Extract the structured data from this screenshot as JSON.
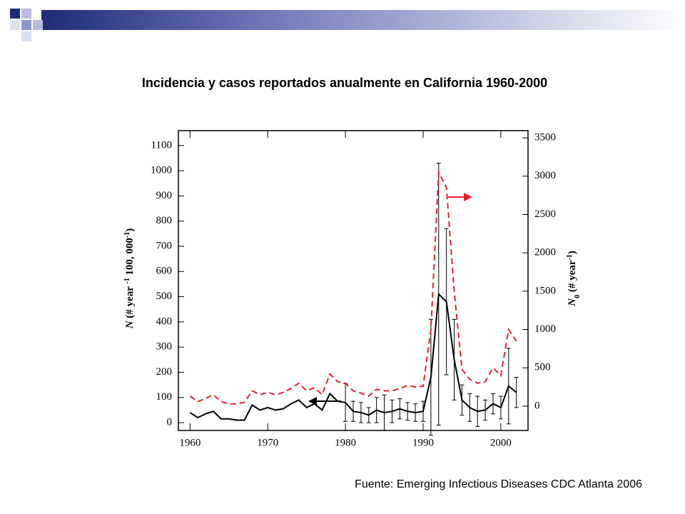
{
  "chart_data": {
    "type": "line",
    "title": "Incidencia y casos reportados anualmente en California 1960-2000",
    "source": "Fuente: Emerging Infectious Diseases CDC Atlanta 2006",
    "ylabel": [
      "N",
      " (# year ",
      "-1",
      " 100, 000",
      "-1",
      ")"
    ],
    "y2label": [
      "N",
      "0",
      " (# year",
      "-1",
      ")"
    ],
    "x": [
      1960,
      1961,
      1962,
      1963,
      1964,
      1965,
      1966,
      1967,
      1968,
      1969,
      1970,
      1971,
      1972,
      1973,
      1974,
      1975,
      1976,
      1977,
      1978,
      1979,
      1980,
      1981,
      1982,
      1983,
      1984,
      1985,
      1986,
      1987,
      1988,
      1989,
      1990,
      1991,
      1992,
      1993,
      1994,
      1995,
      1996,
      1997,
      1998,
      1999,
      2000,
      2001,
      2002
    ],
    "series": [
      {
        "name": "N",
        "color": "#000000",
        "axis": "y",
        "values": [
          40,
          20,
          35,
          45,
          15,
          15,
          10,
          10,
          70,
          50,
          60,
          50,
          55,
          75,
          90,
          60,
          75,
          50,
          115,
          85,
          80,
          45,
          40,
          30,
          50,
          40,
          45,
          55,
          45,
          40,
          45,
          180,
          510,
          480,
          250,
          90,
          60,
          45,
          50,
          75,
          60,
          145,
          120
        ],
        "errors": [
          null,
          null,
          null,
          null,
          null,
          null,
          null,
          null,
          null,
          null,
          null,
          null,
          null,
          null,
          null,
          null,
          null,
          null,
          null,
          null,
          75,
          40,
          40,
          30,
          50,
          70,
          45,
          40,
          35,
          35,
          40,
          230,
          520,
          290,
          160,
          60,
          55,
          60,
          40,
          40,
          45,
          150,
          60
        ]
      },
      {
        "name": "N0",
        "color": "#e8202a",
        "axis": "y2",
        "dashed": true,
        "values": [
          130,
          60,
          100,
          150,
          60,
          30,
          30,
          50,
          200,
          150,
          180,
          150,
          180,
          230,
          300,
          200,
          240,
          150,
          420,
          320,
          300,
          200,
          170,
          130,
          220,
          200,
          200,
          230,
          270,
          250,
          260,
          1000,
          3050,
          2850,
          1500,
          480,
          350,
          300,
          320,
          500,
          400,
          1000,
          850
        ]
      }
    ],
    "xlim": [
      1958.5,
      2003.5
    ],
    "xticks": [
      1960,
      1970,
      1980,
      1990,
      2000
    ],
    "ylim": [
      -31,
      1159
    ],
    "yticks": [
      0,
      100,
      200,
      300,
      400,
      500,
      600,
      700,
      800,
      900,
      1000,
      1100
    ],
    "y2lim": [
      -317,
      3594
    ],
    "y2ticks": [
      0,
      500,
      1000,
      1500,
      2000,
      2500,
      3000,
      3500
    ]
  }
}
